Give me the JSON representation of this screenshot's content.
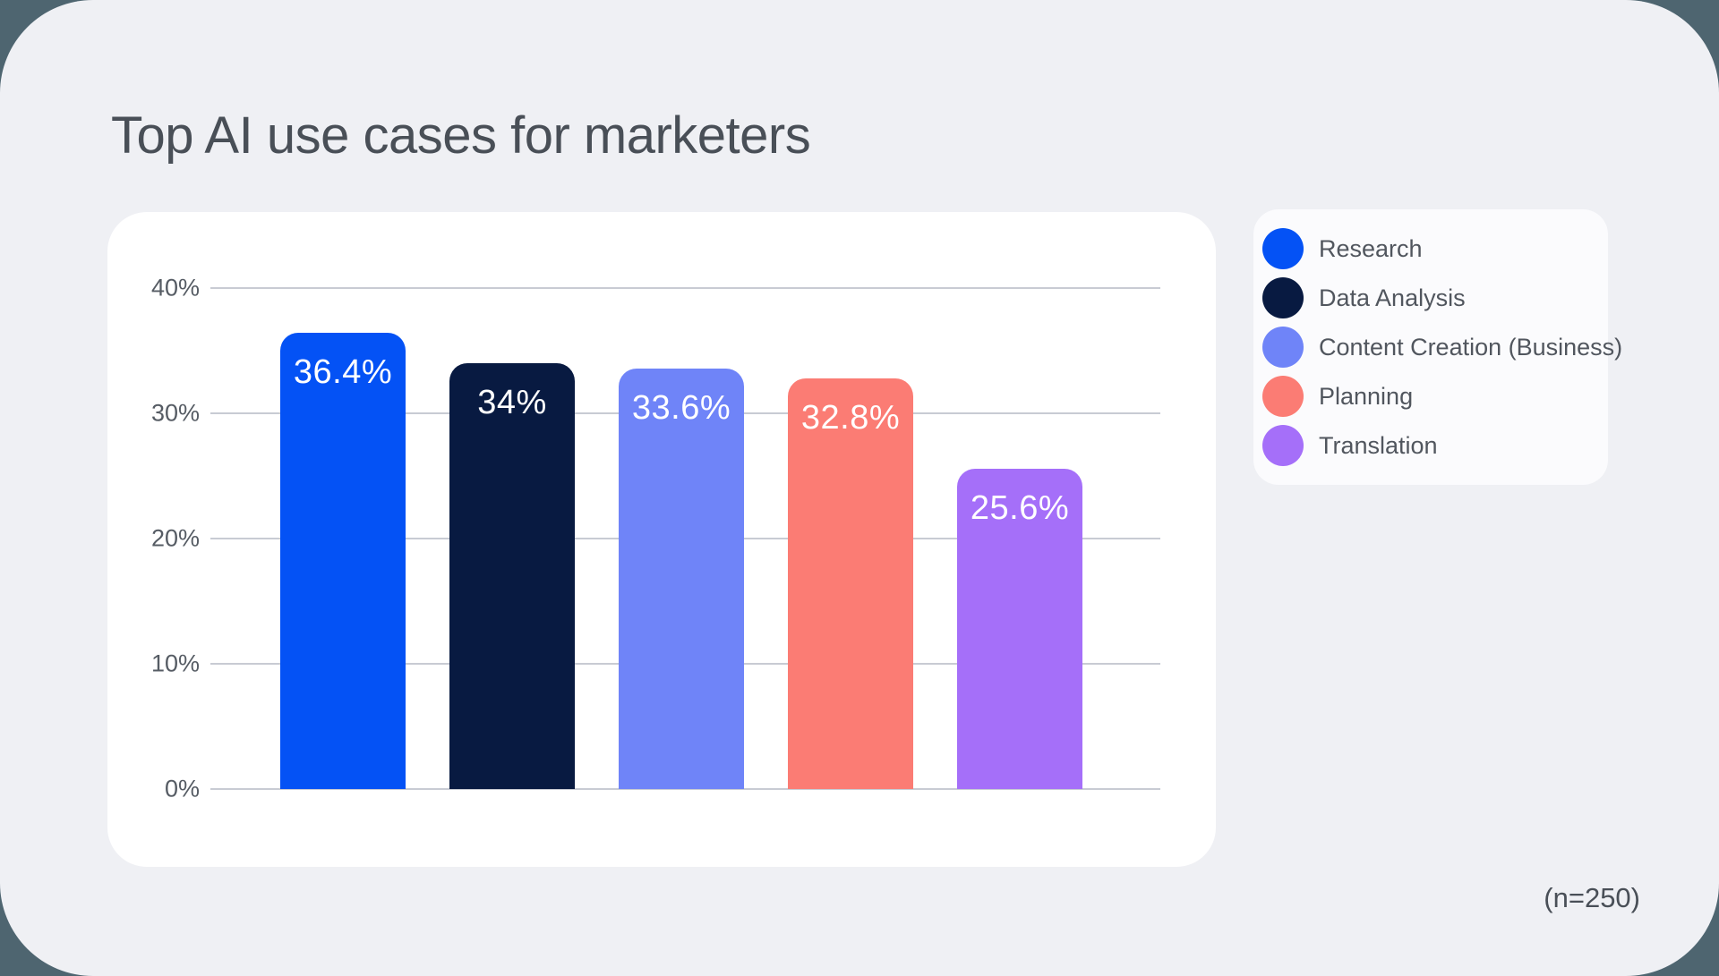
{
  "theme": {
    "outer_bg": "#4E6570",
    "panel_bg": "#EFF0F4",
    "card_bg": "#FFFFFF",
    "legend_bg": "#FBFBFD",
    "grid_color": "#C8CBD3",
    "title_color": "#494F57",
    "bar_label_color": "#FFFFFF"
  },
  "header": {
    "title": "Top AI use cases for marketers"
  },
  "footer": {
    "sample_size_note": "(n=250)"
  },
  "chart_data": {
    "type": "bar",
    "title": "Top AI use cases for marketers",
    "categories": [
      "Research",
      "Data Analysis",
      "Content Creation (Business)",
      "Planning",
      "Translation"
    ],
    "values": [
      36.4,
      34,
      33.6,
      32.8,
      25.6
    ],
    "value_labels": [
      "36.4%",
      "34%",
      "33.6%",
      "32.8%",
      "25.6%"
    ],
    "colors": [
      "#0452F5",
      "#081A41",
      "#6F84F8",
      "#FB7C74",
      "#A56FF9"
    ],
    "xlabel": "",
    "ylabel": "",
    "ylim": [
      0,
      40
    ],
    "yticks": [
      0,
      10,
      20,
      30,
      40
    ],
    "ytick_labels": [
      "0%",
      "10%",
      "20%",
      "30%",
      "40%"
    ],
    "grid": true,
    "legend_position": "right",
    "annotation": "(n=250)"
  }
}
